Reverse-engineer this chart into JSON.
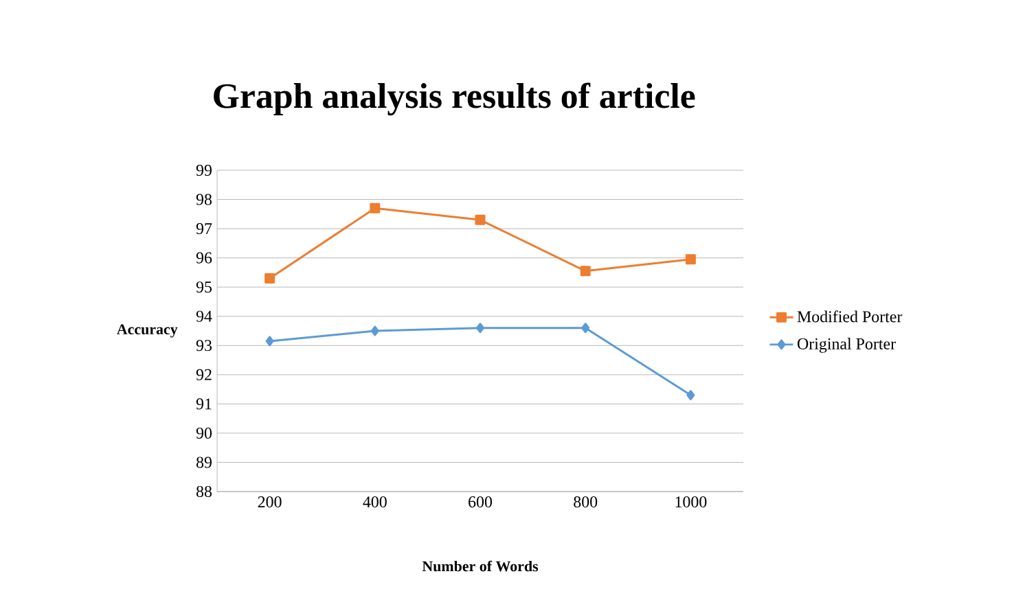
{
  "chart_data": {
    "type": "line",
    "title": "Graph analysis results of article",
    "xlabel": "Number of Words",
    "ylabel": "Accuracy",
    "categories": [
      "200",
      "400",
      "600",
      "800",
      "1000"
    ],
    "series": [
      {
        "name": "Modified Porter",
        "color": "#ed7d31",
        "marker": "square",
        "values": [
          95.3,
          97.7,
          97.3,
          95.55,
          95.95
        ]
      },
      {
        "name": "Original Porter",
        "color": "#5b9bd5",
        "marker": "diamond",
        "values": [
          93.15,
          93.5,
          93.6,
          93.6,
          91.3
        ]
      }
    ],
    "ylim": [
      88,
      99
    ],
    "yticks": [
      88,
      89,
      90,
      91,
      92,
      93,
      94,
      95,
      96,
      97,
      98,
      99
    ],
    "grid": "y",
    "legend": "right"
  }
}
